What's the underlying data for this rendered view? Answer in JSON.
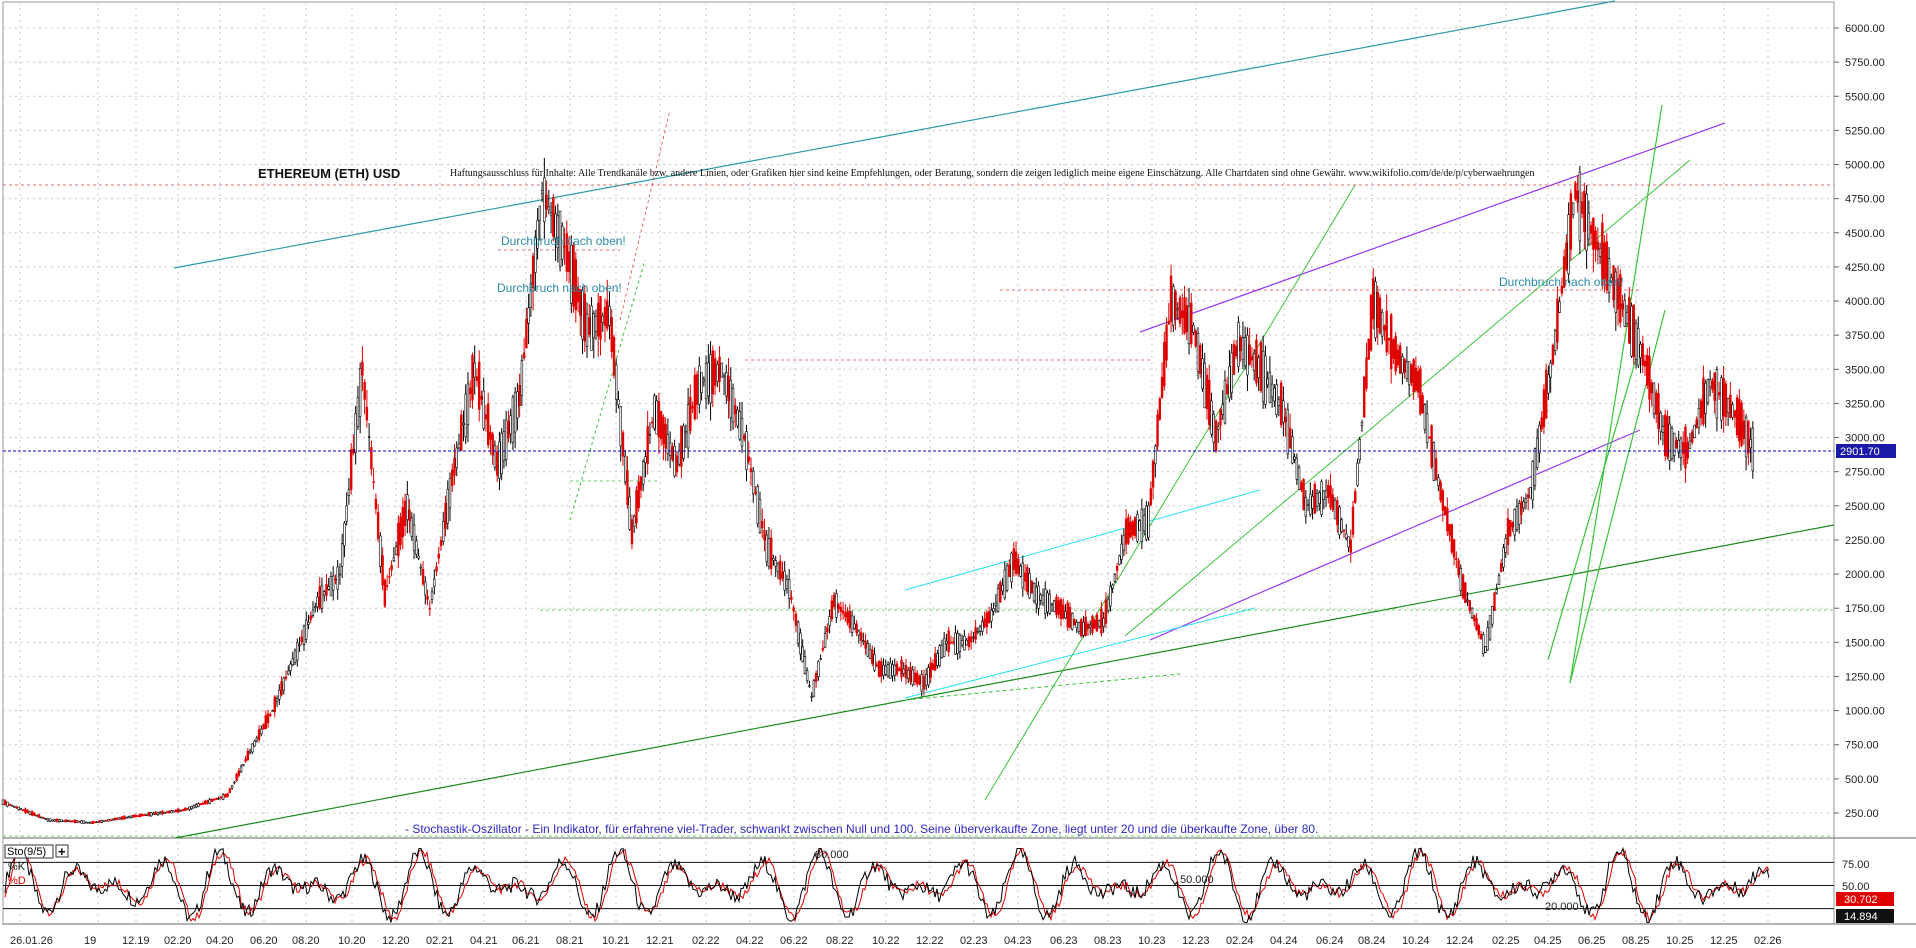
{
  "header": {
    "title": "ETHEREUM (ETH) USD",
    "disclaimer": "Haftungsausschluss für Inhalte: Alle Trendkanäle bzw. andere Linien, oder Grafiken hier sind keine Empfehlungen, oder Beratung, sondern die zeigen lediglich meine eigene Einschätzung. Alle Chartdaten sind ohne Gewähr.  www.wikifolio.com/de/de/p/cyberwaehrungen"
  },
  "annotations": {
    "breakout_1": "Durchbruch nach oben!",
    "breakout_2": "Durchbruch nach oben!",
    "breakout_3": "Durchbruch nach oben!",
    "stoch_note": "- Stochastik-Oszillator - Ein Indikator, für erfahrene viel-Trader, schwankt zwischen Null und 100. Seine überverkaufte Zone, liegt unter 20 und die überkaufte Zone, über 80."
  },
  "indicator": {
    "name": "Sto(9/5)",
    "k_label": "%K",
    "d_label": "%D",
    "k_value": "30.702",
    "d_value": "14.894",
    "level_80": "80.000",
    "level_50": "50.000",
    "level_20": "20.000",
    "ticks": [
      "75.00",
      "50.00"
    ]
  },
  "last_price_label": "2901.70",
  "colors": {
    "price_up": "#000000",
    "price_down": "#e00000",
    "channel_teal": "#2a9aa6",
    "channel_purple": "#9a3af0",
    "trend_green": "#39c339",
    "trend_darkgreen": "#1a8a1a",
    "trend_cyan": "#28e0f0",
    "last_price_line": "#0000cc",
    "horizontal_red": "#e04040",
    "stoch_k": "#000000",
    "stoch_d": "#e00000",
    "grid": "#c8c8c8"
  },
  "chart_data": {
    "type": "line",
    "title": "ETHEREUM (ETH) USD",
    "ylim": [
      0,
      6200
    ],
    "y_ticks": [
      "6000.00",
      "5750.00",
      "5500.00",
      "5250.00",
      "5000.00",
      "4750.00",
      "4500.00",
      "4250.00",
      "4000.00",
      "3750.00",
      "3500.00",
      "3250.00",
      "3000.00",
      "2750.00",
      "2500.00",
      "2250.00",
      "2000.00",
      "1750.00",
      "1500.00",
      "1250.00",
      "1000.00",
      "750.00",
      "500.00",
      "250.00"
    ],
    "x_ticks": [
      "26.01.26",
      "19",
      "12.19",
      "02.20",
      "04.20",
      "06.20",
      "08.20",
      "10.20",
      "12.20",
      "02.21",
      "04.21",
      "06.21",
      "08.21",
      "10.21",
      "12.21",
      "02.22",
      "04.22",
      "06.22",
      "08.22",
      "10.22",
      "12.22",
      "02.23",
      "04.23",
      "06.23",
      "08.23",
      "10.23",
      "12.23",
      "02.24",
      "04.24",
      "06.24",
      "08.24",
      "10.24",
      "12.24",
      "02.25",
      "04.25",
      "06.25",
      "08.25",
      "10.25",
      "12.25",
      "02.26"
    ],
    "grid": true,
    "series": [
      {
        "x": [
          0,
          4,
          8,
          12,
          16,
          20,
          22,
          24,
          26,
          28,
          30,
          32,
          34,
          36,
          38,
          40,
          42,
          44,
          46,
          48,
          50,
          52,
          54,
          56,
          58,
          60,
          62,
          64,
          66,
          68,
          70,
          72,
          74,
          76,
          78,
          80,
          82,
          84,
          86,
          88,
          90,
          92,
          94,
          96,
          98,
          100,
          102,
          104,
          106,
          108,
          110,
          112,
          114,
          116,
          118,
          120,
          122,
          124,
          126,
          128,
          130,
          132,
          134,
          136,
          138,
          140,
          142,
          144,
          146,
          148,
          150,
          152,
          154,
          156
        ],
        "values": [
          330,
          200,
          180,
          230,
          270,
          380,
          700,
          1000,
          1400,
          1800,
          2000,
          3500,
          1850,
          2500,
          1750,
          2700,
          3500,
          2800,
          3300,
          4800,
          4400,
          3800,
          3900,
          2300,
          3200,
          2800,
          3400,
          3500,
          3000,
          2200,
          1900,
          1100,
          1800,
          1600,
          1300,
          1300,
          1200,
          1500,
          1500,
          1700,
          2100,
          1850,
          1750,
          1600,
          1650,
          2300,
          2400,
          4000,
          3800,
          3000,
          3700,
          3500,
          3200,
          2500,
          2600,
          2200,
          4000,
          3600,
          3400,
          2600,
          1900,
          1450,
          2300,
          2600,
          3600,
          4800,
          4400,
          4000,
          3600,
          3000,
          2900,
          3400,
          3200,
          2900
        ],
        "_axis_note": ""
      }
    ]
  }
}
